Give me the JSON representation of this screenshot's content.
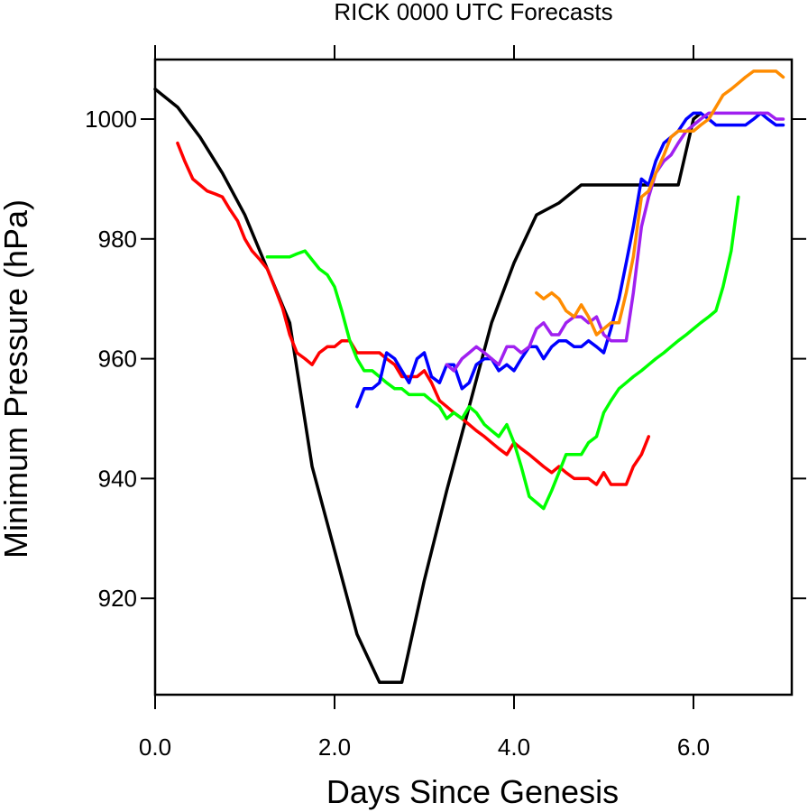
{
  "chart_data": {
    "type": "line",
    "title": "RICK 0000 UTC Forecasts",
    "xlabel": "Days Since Genesis",
    "ylabel": "Minimum Pressure (hPa)",
    "xlim": [
      0,
      7.05
    ],
    "ylim": [
      900,
      1010
    ],
    "xticks": [
      0,
      2,
      4,
      6
    ],
    "xtick_labels": [
      "0.0",
      "2.0",
      "4.0",
      "6.0"
    ],
    "yticks": [
      920,
      940,
      960,
      980,
      1000
    ],
    "ytick_labels": [
      "920",
      "940",
      "960",
      "980",
      "1000"
    ],
    "grid": false,
    "legend": "none",
    "series": [
      {
        "color": "#000000",
        "x": [
          0,
          0.25,
          0.5,
          0.75,
          1.0,
          1.25,
          1.5,
          1.75,
          2.0,
          2.25,
          2.5,
          2.75,
          3.0,
          3.25,
          3.5,
          3.75,
          4.0,
          4.25,
          4.5,
          4.75,
          5.0,
          5.25,
          5.5,
          5.75,
          5.83,
          6.0,
          6.08
        ],
        "y": [
          1005,
          1002,
          997,
          991,
          984,
          975,
          966,
          942,
          928,
          914,
          906,
          906,
          923,
          938,
          952,
          966,
          976,
          984,
          986,
          989,
          989,
          989,
          989,
          989,
          989,
          1000,
          1001
        ]
      },
      {
        "color": "#ff0000",
        "x": [
          0.25,
          0.33,
          0.42,
          0.5,
          0.58,
          0.67,
          0.75,
          0.83,
          0.92,
          1.0,
          1.08,
          1.17,
          1.25,
          1.33,
          1.42,
          1.5,
          1.58,
          1.67,
          1.75,
          1.83,
          1.92,
          2.0,
          2.08,
          2.17,
          2.25,
          2.33,
          2.42,
          2.5,
          2.58,
          2.67,
          2.75,
          2.83,
          2.92,
          3.0,
          3.08,
          3.17,
          3.25,
          3.33,
          3.42,
          3.5,
          3.58,
          3.67,
          3.75,
          3.83,
          3.92,
          4.0,
          4.08,
          4.17,
          4.25,
          4.33,
          4.42,
          4.5,
          4.58,
          4.67,
          4.75,
          4.83,
          4.92,
          5.0,
          5.08,
          5.17,
          5.25,
          5.33,
          5.42,
          5.5
        ],
        "y": [
          996,
          993,
          990,
          989,
          988,
          987.5,
          987,
          985,
          983,
          980,
          978,
          976.5,
          975,
          972,
          968.5,
          964,
          961,
          960,
          959,
          961,
          962,
          962,
          963,
          963,
          961,
          961,
          961,
          961,
          960,
          959,
          957,
          957,
          957,
          958,
          956,
          953,
          952,
          951,
          950,
          949,
          948,
          947,
          946,
          945,
          944,
          946,
          945,
          944,
          943,
          942,
          941,
          942,
          941,
          940,
          940,
          940,
          939,
          941,
          939,
          939,
          939,
          942,
          944,
          947
        ]
      },
      {
        "color": "#00ff00",
        "x": [
          1.25,
          1.33,
          1.42,
          1.5,
          1.58,
          1.67,
          1.75,
          1.83,
          1.92,
          2.0,
          2.08,
          2.17,
          2.25,
          2.33,
          2.42,
          2.5,
          2.58,
          2.67,
          2.75,
          2.83,
          2.92,
          3.0,
          3.08,
          3.17,
          3.25,
          3.33,
          3.42,
          3.5,
          3.58,
          3.67,
          3.75,
          3.83,
          3.92,
          4.0,
          4.08,
          4.17,
          4.25,
          4.33,
          4.42,
          4.5,
          4.58,
          4.67,
          4.75,
          4.83,
          4.92,
          5.0,
          5.08,
          5.17,
          5.25,
          5.33,
          5.42,
          5.5,
          5.58,
          5.67,
          5.75,
          5.83,
          5.92,
          6.0,
          6.08,
          6.17,
          6.25,
          6.33,
          6.42,
          6.5
        ],
        "y": [
          977,
          977,
          977,
          977,
          977.5,
          978,
          976.5,
          975,
          974,
          972,
          968,
          963,
          960,
          958,
          958,
          957,
          956,
          955,
          955,
          954,
          954,
          954,
          953,
          952,
          950,
          951,
          950,
          952,
          951,
          949,
          948,
          947,
          949,
          946,
          942,
          937,
          936,
          935,
          938,
          941,
          944,
          944,
          944,
          946,
          947,
          951,
          953,
          955,
          956,
          957,
          958,
          959,
          960,
          961,
          962,
          963,
          964,
          965,
          966,
          967,
          968,
          972,
          978,
          987
        ]
      },
      {
        "color": "#0000ff",
        "x": [
          2.25,
          2.33,
          2.42,
          2.5,
          2.58,
          2.67,
          2.75,
          2.83,
          2.92,
          3.0,
          3.08,
          3.17,
          3.25,
          3.33,
          3.42,
          3.5,
          3.58,
          3.67,
          3.75,
          3.83,
          3.92,
          4.0,
          4.08,
          4.17,
          4.25,
          4.33,
          4.42,
          4.5,
          4.58,
          4.67,
          4.75,
          4.83,
          4.92,
          5.0,
          5.08,
          5.17,
          5.25,
          5.33,
          5.42,
          5.5,
          5.58,
          5.67,
          5.75,
          5.83,
          5.92,
          6.0,
          6.08,
          6.17,
          6.25,
          6.33,
          6.42,
          6.5,
          6.58,
          6.67,
          6.75,
          6.83,
          6.92,
          7.0
        ],
        "y": [
          952,
          955,
          955,
          956,
          961,
          960,
          958,
          956,
          960,
          961,
          957,
          956,
          959,
          959,
          955,
          956,
          959,
          960,
          960,
          958,
          959,
          958,
          960,
          962,
          962,
          960,
          962,
          963,
          963,
          962,
          962,
          963,
          962,
          961,
          965,
          970,
          976,
          982,
          990,
          989,
          993,
          996,
          997,
          998,
          1000,
          1001,
          1001,
          1000,
          999,
          999,
          999,
          999,
          999,
          1000,
          1001,
          1000,
          999,
          999
        ]
      },
      {
        "color": "#a020f0",
        "x": [
          3.25,
          3.33,
          3.42,
          3.5,
          3.58,
          3.67,
          3.75,
          3.83,
          3.92,
          4.0,
          4.08,
          4.17,
          4.25,
          4.33,
          4.42,
          4.5,
          4.58,
          4.67,
          4.75,
          4.83,
          4.92,
          5.0,
          5.08,
          5.17,
          5.25,
          5.33,
          5.42,
          5.5,
          5.58,
          5.67,
          5.75,
          5.83,
          5.92,
          6.0,
          6.08,
          6.17,
          6.25,
          6.33,
          6.42,
          6.5,
          6.58,
          6.67,
          6.75,
          6.83,
          6.92,
          7.0
        ],
        "y": [
          959,
          958,
          960,
          961,
          962,
          961,
          960,
          959,
          962,
          962,
          961,
          962,
          965,
          966,
          964,
          964,
          966,
          967,
          967,
          966,
          967,
          964,
          963,
          963,
          963,
          971,
          982,
          987,
          991,
          993,
          994,
          996,
          998,
          999,
          1000,
          1001,
          1001,
          1001,
          1001,
          1001,
          1001,
          1001,
          1001,
          1001,
          1000,
          1000
        ]
      },
      {
        "color": "#ff8c00",
        "x": [
          4.25,
          4.33,
          4.42,
          4.5,
          4.58,
          4.67,
          4.75,
          4.83,
          4.92,
          5.0,
          5.08,
          5.17,
          5.25,
          5.33,
          5.42,
          5.5,
          5.58,
          5.67,
          5.75,
          5.83,
          5.92,
          6.0,
          6.08,
          6.17,
          6.25,
          6.33,
          6.42,
          6.5,
          6.58,
          6.67,
          6.75,
          6.83,
          6.92,
          7.0
        ],
        "y": [
          971,
          970,
          971,
          970,
          968,
          967,
          969,
          967,
          964,
          965,
          966,
          966,
          971,
          977,
          987,
          988,
          991,
          994,
          997,
          998,
          998,
          998,
          999,
          1000,
          1002,
          1004,
          1005,
          1006,
          1007,
          1008,
          1008,
          1008,
          1008,
          1007
        ]
      }
    ]
  }
}
